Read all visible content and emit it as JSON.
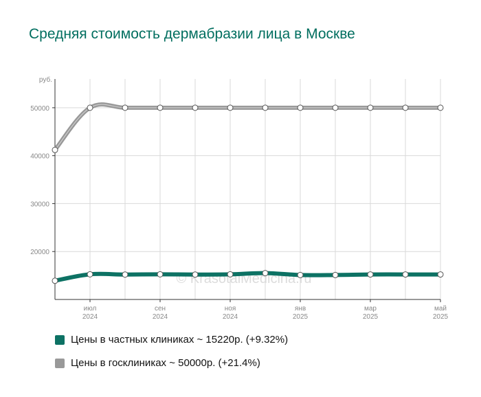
{
  "chart_data": {
    "type": "line",
    "title": "Средняя стоимость дермабразии лица в Москве",
    "ylabel": "руб.",
    "ylim": [
      10000,
      56000
    ],
    "yticks": [
      20000,
      30000,
      40000,
      50000
    ],
    "ytick_labels": [
      "20000",
      "30000",
      "40000",
      "50000"
    ],
    "x": [
      "2024-06",
      "2024-07",
      "2024-08",
      "2024-09",
      "2024-10",
      "2024-11",
      "2024-12",
      "2025-01",
      "2025-02",
      "2025-03",
      "2025-04",
      "2025-05"
    ],
    "xtick_labels": [
      {
        "month": "июл",
        "year": "2024"
      },
      {
        "month": "сен",
        "year": "2024"
      },
      {
        "month": "ноя",
        "year": "2024"
      },
      {
        "month": "янв",
        "year": "2025"
      },
      {
        "month": "мар",
        "year": "2025"
      },
      {
        "month": "май",
        "year": "2025"
      }
    ],
    "series": [
      {
        "name": "Цены в частных клиниках ~ 15220р. (+9.32%)",
        "color": "#0d7264",
        "values": [
          13900,
          15250,
          15200,
          15250,
          15200,
          15250,
          15500,
          15100,
          15100,
          15220,
          15220,
          15220
        ]
      },
      {
        "name": "Цены в госклиниках ~ 50000р. (+21.4%)",
        "color": "#999999",
        "values": [
          41200,
          50000,
          50000,
          50000,
          50000,
          50000,
          50000,
          50000,
          50000,
          50000,
          50000,
          50000
        ]
      }
    ],
    "grid": true,
    "legend_position": "bottom-left",
    "watermark": "© KrasotaiMedicina.ru"
  }
}
